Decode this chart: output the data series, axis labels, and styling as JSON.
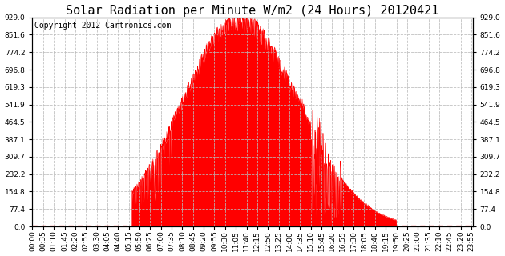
{
  "title": "Solar Radiation per Minute W/m2 (24 Hours) 20120421",
  "copyright_text": "Copyright 2012 Cartronics.com",
  "yticks": [
    0.0,
    77.4,
    154.8,
    232.2,
    309.7,
    387.1,
    464.5,
    541.9,
    619.3,
    696.8,
    774.2,
    851.6,
    929.0
  ],
  "ymax": 929.0,
  "ymin": 0.0,
  "fill_color": "#ff0000",
  "line_color": "#ff0000",
  "dashed_line_color": "#ff0000",
  "grid_color": "#bbbbbb",
  "background_color": "#ffffff",
  "title_fontsize": 11,
  "copyright_fontsize": 7,
  "tick_fontsize": 6.5,
  "n_minutes": 1440,
  "sunrise": 325,
  "sunset": 1190,
  "noon": 675,
  "sigma_rise": 185,
  "sigma_set": 195,
  "peak": 929.0
}
